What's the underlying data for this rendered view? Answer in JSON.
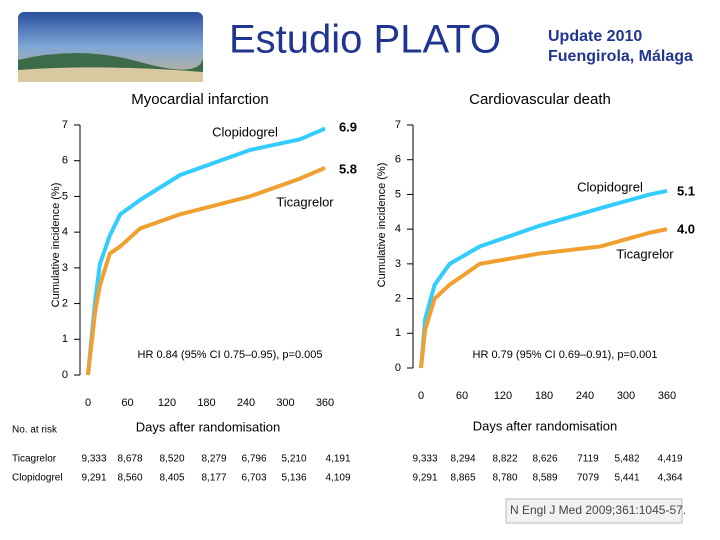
{
  "header": {
    "title": "Estudio PLATO",
    "update": "Update 2010",
    "place": "Fuengirola, Málaga"
  },
  "chart_data": [
    {
      "type": "line",
      "title": "Myocardial infarction",
      "y_label": "Cumulative incidence (%)",
      "x_label": "Days after randomisation",
      "annotation": "HR 0.84 (95% CI 0.75–0.95), p=0.005",
      "xlim": [
        0,
        360
      ],
      "xticks": [
        0,
        60,
        120,
        180,
        240,
        300,
        360
      ],
      "ylim": [
        0,
        7
      ],
      "yticks": [
        0,
        1,
        2,
        3,
        4,
        5,
        6,
        7
      ],
      "x": [
        0,
        11,
        18,
        33,
        49,
        79,
        140,
        246,
        322,
        360
      ],
      "series": [
        {
          "name": "Clopidogrel",
          "color": "#33ccff",
          "values": [
            0,
            2.1,
            3.1,
            3.9,
            4.5,
            4.9,
            5.6,
            6.3,
            6.6,
            6.9
          ],
          "value_labels": [
            null,
            null,
            null,
            null,
            null,
            null,
            null,
            null,
            null,
            "6.9"
          ]
        },
        {
          "name": "Ticagrelor",
          "color": "#f0a030",
          "values": [
            0,
            1.8,
            2.5,
            3.4,
            3.6,
            4.1,
            4.5,
            5.0,
            5.5,
            5.8
          ],
          "value_labels": [
            null,
            null,
            null,
            null,
            null,
            null,
            null,
            null,
            null,
            "5.8"
          ]
        }
      ]
    },
    {
      "type": "line",
      "title": "Cardiovascular death",
      "y_label": "Cumulative incidence (%)",
      "x_label": "Days after randomisation",
      "annotation": "HR 0.79 (95% CI 0.69–0.91), p=0.001",
      "xlim": [
        0,
        360
      ],
      "xticks": [
        0,
        60,
        120,
        180,
        240,
        300,
        360
      ],
      "ylim": [
        0,
        7
      ],
      "yticks": [
        0,
        1,
        2,
        3,
        4,
        5,
        6,
        7
      ],
      "x": [
        0,
        6,
        20,
        42,
        86,
        174,
        262,
        335,
        360
      ],
      "series": [
        {
          "name": "Clopidogrel",
          "color": "#33ccff",
          "values": [
            0,
            1.4,
            2.4,
            3.0,
            3.5,
            4.1,
            4.6,
            5.0,
            5.1
          ],
          "value_labels": [
            null,
            null,
            null,
            null,
            null,
            null,
            null,
            null,
            "5.1"
          ]
        },
        {
          "name": "Ticagrelor",
          "color": "#f0a030",
          "values": [
            0,
            1.1,
            2.0,
            2.4,
            3.0,
            3.3,
            3.5,
            3.9,
            4.0
          ],
          "value_labels": [
            null,
            null,
            null,
            null,
            null,
            null,
            null,
            null,
            "4.0"
          ]
        }
      ]
    }
  ],
  "at_risk": {
    "label": "No. at risk",
    "rows": [
      {
        "name": "Ticagrelor",
        "left": [
          "9,333",
          "8,678",
          "8,520",
          "8,279",
          "6,796",
          "5,210",
          "4,191"
        ],
        "right": [
          "9,333",
          "8,294",
          "8,822",
          "8,626",
          "7119",
          "5,482",
          "4,419"
        ]
      },
      {
        "name": "Clopidogrel",
        "left": [
          "9,291",
          "8,560",
          "8,405",
          "8,177",
          "6,703",
          "5,136",
          "4,109"
        ],
        "right": [
          "9,291",
          "8,865",
          "8,780",
          "8,589",
          "7079",
          "5,441",
          "4,364"
        ]
      }
    ]
  },
  "citation": "N Engl J Med 2009;361:1045-57."
}
